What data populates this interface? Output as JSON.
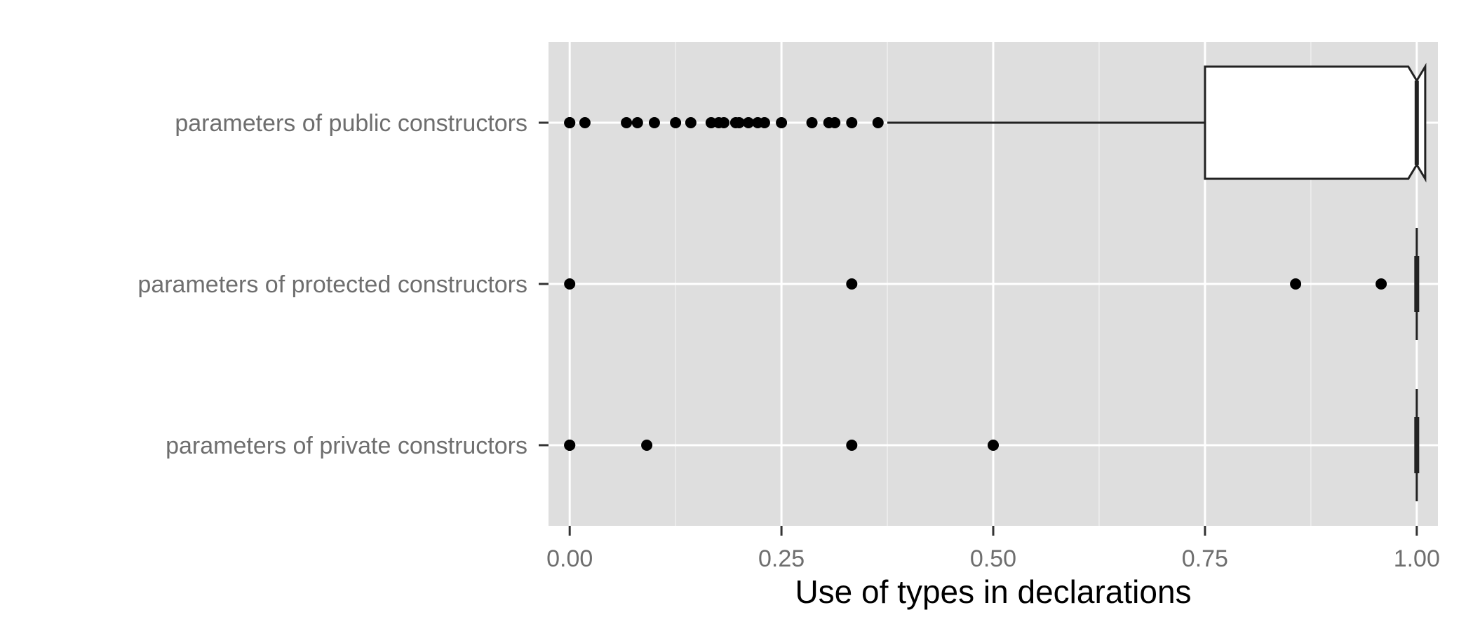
{
  "chart_data": {
    "type": "boxplot",
    "orientation": "horizontal",
    "xlabel": "Use of types in declarations",
    "ylabel": "",
    "xlim": [
      -0.025,
      1.025
    ],
    "x_ticks": [
      0,
      0.25,
      0.5,
      0.75,
      1
    ],
    "x_tick_labels": [
      "0.00",
      "0.25",
      "0.50",
      "0.75",
      "1.00"
    ],
    "grid": true,
    "notched": true,
    "categories": [
      "parameters of public constructors",
      "parameters of protected constructors",
      "parameters of private constructors"
    ],
    "boxes": [
      {
        "category": "parameters of public constructors",
        "q1": 0.75,
        "median": 1.0,
        "q3": 1.0,
        "notch_low": 0.99,
        "notch_high": 1.01,
        "whisker_low": 0.375,
        "whisker_high": 1.0,
        "outliers": [
          0.0,
          0.0,
          0.018,
          0.067,
          0.08,
          0.1,
          0.125,
          0.143,
          0.167,
          0.176,
          0.182,
          0.196,
          0.2,
          0.211,
          0.222,
          0.23,
          0.25,
          0.286,
          0.306,
          0.313,
          0.333,
          0.364
        ]
      },
      {
        "category": "parameters of protected constructors",
        "q1": 1.0,
        "median": 1.0,
        "q3": 1.0,
        "notch_low": 1.0,
        "notch_high": 1.0,
        "whisker_low": 1.0,
        "whisker_high": 1.0,
        "outliers": [
          0.0,
          0.333,
          0.857,
          0.958
        ]
      },
      {
        "category": "parameters of private constructors",
        "q1": 1.0,
        "median": 1.0,
        "q3": 1.0,
        "notch_low": 1.0,
        "notch_high": 1.0,
        "whisker_low": 1.0,
        "whisker_high": 1.0,
        "outliers": [
          0.0,
          0.0,
          0.091,
          0.333,
          0.5
        ]
      }
    ],
    "colors": {
      "panel_background": "#dedede",
      "grid_major": "#ffffff",
      "grid_minor": "#eeeeee",
      "box_fill": "#ffffff",
      "box_stroke": "#222222",
      "points": "#000000"
    }
  }
}
